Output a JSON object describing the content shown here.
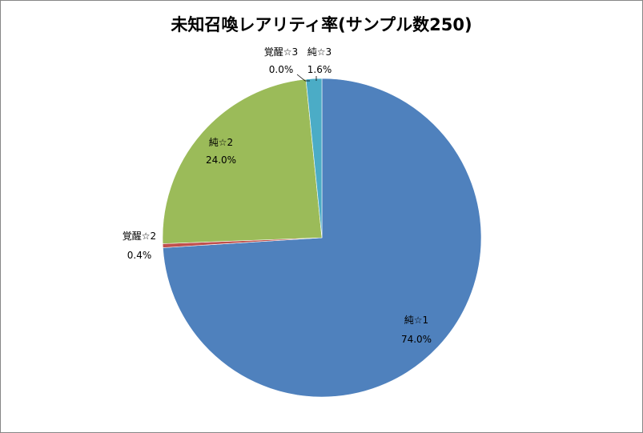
{
  "chart_data": {
    "type": "pie",
    "title": "未知召喚レアリティ率(サンプル数250)",
    "slices": [
      {
        "label": "純☆1",
        "value": 74.0,
        "percent_label": "74.0%",
        "color": "#4f81bd"
      },
      {
        "label": "覚醒☆2",
        "value": 0.4,
        "percent_label": "0.4%",
        "color": "#c0504d"
      },
      {
        "label": "純☆2",
        "value": 24.0,
        "percent_label": "24.0%",
        "color": "#9bbb59"
      },
      {
        "label": "覚醒☆3",
        "value": 0.0,
        "percent_label": "0.0%",
        "color": "#8064a2"
      },
      {
        "label": "純☆3",
        "value": 1.6,
        "percent_label": "1.6%",
        "color": "#4bacc6"
      }
    ],
    "legend": "none"
  }
}
